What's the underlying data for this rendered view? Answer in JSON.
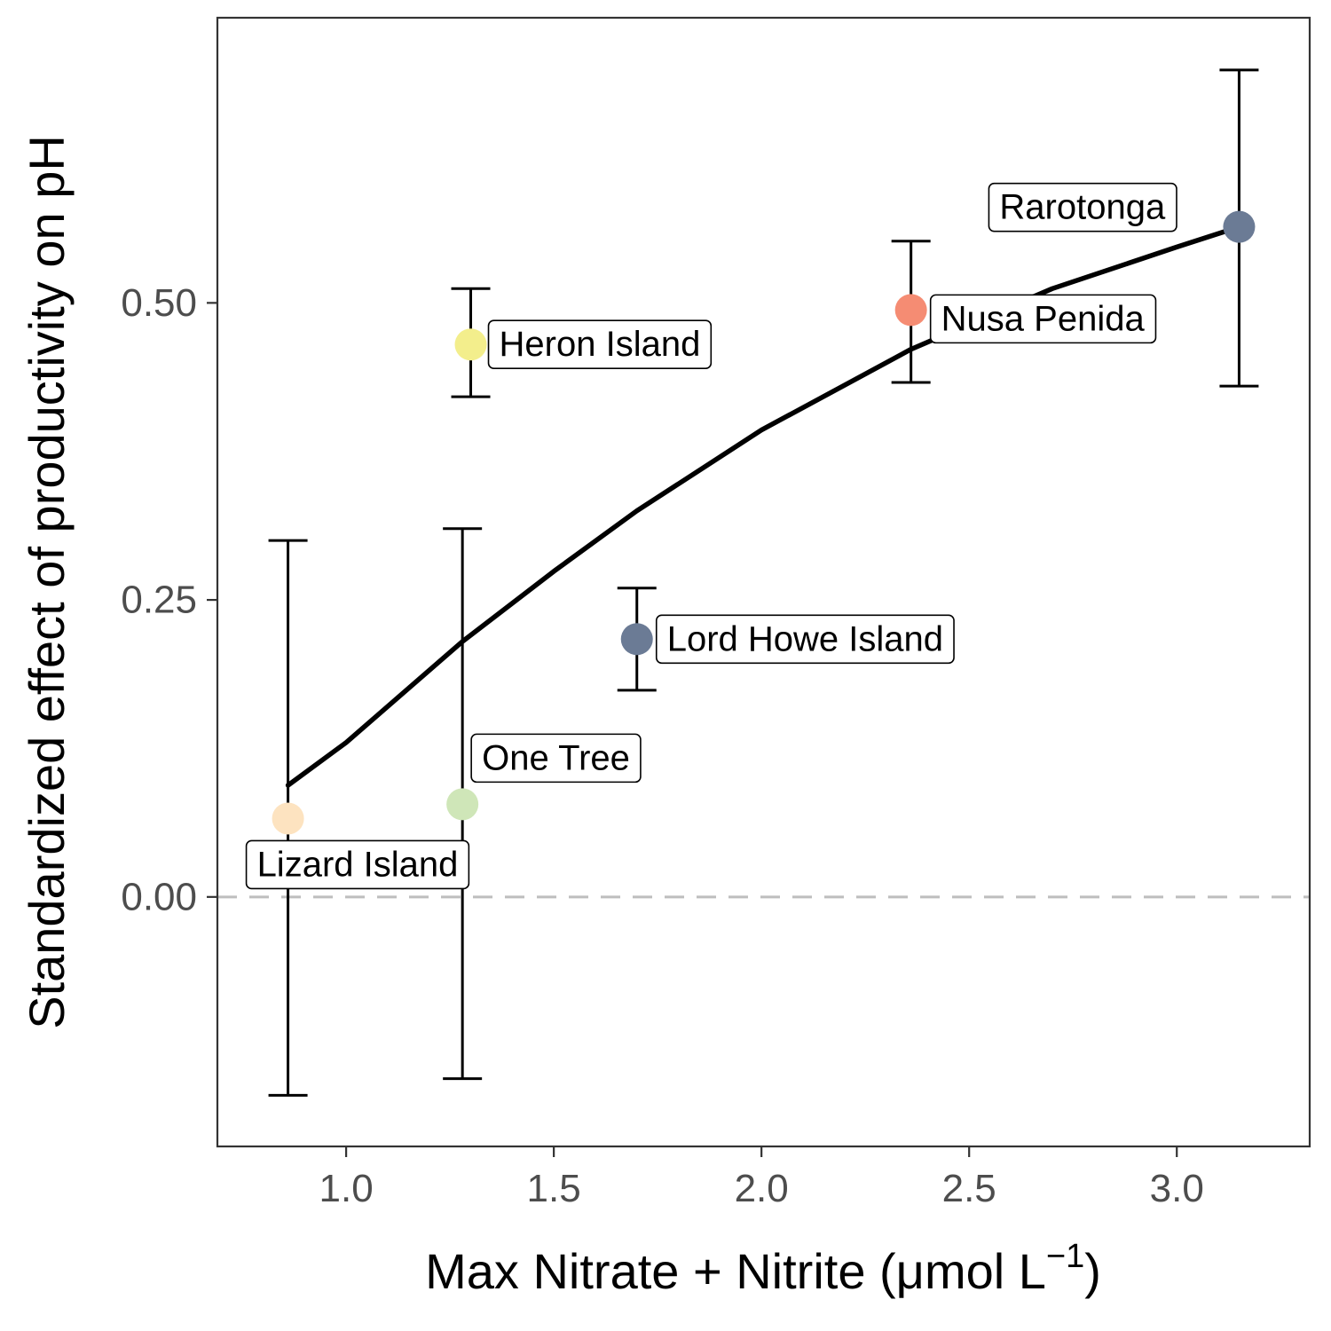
{
  "chart_data": {
    "type": "scatter",
    "title": "",
    "xlabel": "Max Nitrate + Nitrite (μmol L",
    "xlabel_superscript": "−1",
    "xlabel_close": ")",
    "ylabel": "Standardized effect of productivity on pH",
    "xlim": [
      0.69,
      3.32
    ],
    "ylim": [
      -0.21,
      0.74
    ],
    "x_ticks": [
      1.0,
      1.5,
      2.0,
      2.5,
      3.0
    ],
    "x_tick_labels": [
      "1.0",
      "1.5",
      "2.0",
      "2.5",
      "3.0"
    ],
    "y_ticks": [
      0.0,
      0.25,
      0.5
    ],
    "y_tick_labels": [
      "0.00",
      "0.25",
      "0.50"
    ],
    "grid": false,
    "reference_line": {
      "y": 0.0,
      "style": "dashed",
      "color": "#bebebe"
    },
    "points": [
      {
        "site": "Lizard Island",
        "x": 0.86,
        "y": 0.066,
        "ymin": -0.167,
        "ymax": 0.3,
        "color": "#fde3c0"
      },
      {
        "site": "One Tree",
        "x": 1.28,
        "y": 0.078,
        "ymin": -0.153,
        "ymax": 0.31,
        "color": "#cfe6b8"
      },
      {
        "site": "Heron Island",
        "x": 1.3,
        "y": 0.465,
        "ymin": 0.421,
        "ymax": 0.512,
        "color": "#f3ee8c"
      },
      {
        "site": "Lord Howe Island",
        "x": 1.7,
        "y": 0.217,
        "ymin": 0.174,
        "ymax": 0.26,
        "color": "#6b7b95"
      },
      {
        "site": "Nusa Penida",
        "x": 2.36,
        "y": 0.494,
        "ymin": 0.433,
        "ymax": 0.552,
        "color": "#f58c73"
      },
      {
        "site": "Rarotonga",
        "x": 3.15,
        "y": 0.564,
        "ymin": 0.43,
        "ymax": 0.696,
        "color": "#6b7b95"
      }
    ],
    "fit_line": {
      "x": [
        0.86,
        1.0,
        1.28,
        1.5,
        1.7,
        2.0,
        2.36,
        2.7,
        3.0,
        3.15
      ],
      "y": [
        0.094,
        0.13,
        0.215,
        0.274,
        0.325,
        0.393,
        0.461,
        0.512,
        0.547,
        0.564
      ]
    }
  }
}
